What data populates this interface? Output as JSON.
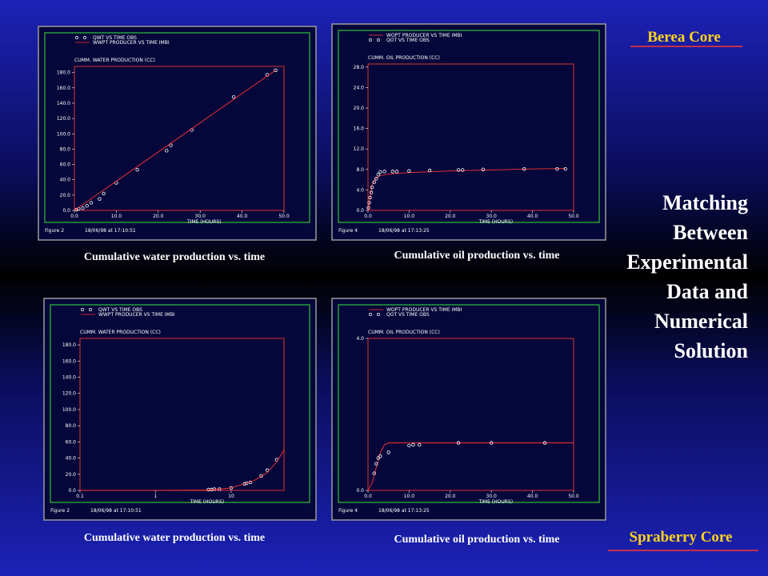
{
  "slide": {
    "top_label": "Berea Core",
    "bottom_label": "Spraberry Core",
    "title": [
      "Matching",
      "Between",
      "Experimental",
      "Data and",
      "Numerical",
      "Solution"
    ],
    "captions": [
      "Cumulative water production vs. time",
      "Cumulative oil production vs. time",
      "Cumulative water production vs. time",
      "Cumulative oil production vs. time"
    ]
  },
  "chart_data": [
    {
      "type": "line",
      "ylabel": "CUMM. WATER PRODUCTION (CC)",
      "xlabel": "TIME (HOURS)",
      "figure": "Figure 2",
      "timestamp": "18/06/98 at 17:10:51",
      "xlim": [
        0,
        50
      ],
      "xticks": [
        {
          "value": 0,
          "label": "0.0"
        },
        {
          "value": 10,
          "label": "10.0"
        },
        {
          "value": 20,
          "label": "20.0"
        },
        {
          "value": 30,
          "label": "30.0"
        },
        {
          "value": 40,
          "label": "40.0"
        },
        {
          "value": 50,
          "label": "50.0"
        }
      ],
      "ylim": [
        0,
        188
      ],
      "yticks": [
        {
          "value": 0,
          "label": "0.0"
        },
        {
          "value": 20,
          "label": "20.0"
        },
        {
          "value": 40,
          "label": "40.0"
        },
        {
          "value": 60,
          "label": "60.0"
        },
        {
          "value": 80,
          "label": "80.0"
        },
        {
          "value": 100,
          "label": "100.0"
        },
        {
          "value": 120,
          "label": "120.0"
        },
        {
          "value": 140,
          "label": "140.0"
        },
        {
          "value": 160,
          "label": "160.0"
        },
        {
          "value": 180,
          "label": "180.0"
        }
      ],
      "series": [
        {
          "name": "QWT VS TIME OBS",
          "color": "#ffffff",
          "style": "markers",
          "x": [
            0.5,
            1,
            2,
            3,
            4,
            6,
            7,
            10,
            15,
            22,
            23,
            28,
            38,
            46,
            48
          ],
          "values": [
            1,
            2,
            3,
            6,
            10,
            15,
            22,
            36,
            53,
            78,
            85,
            105,
            148,
            177,
            183
          ]
        },
        {
          "name": "WWPT PRODUCER VS TIME IMBI",
          "color": "#ff3333",
          "style": "line",
          "x": [
            0,
            48
          ],
          "values": [
            0,
            183
          ]
        }
      ]
    },
    {
      "type": "line",
      "ylabel": "CUMM. OIL PRODUCTION (CC)",
      "xlabel": "TIME (HOURS)",
      "figure": "Figure 4",
      "timestamp": "18/06/98 at 17:13:25",
      "xlim": [
        0,
        50
      ],
      "xticks": [
        {
          "value": 0,
          "label": "0.0"
        },
        {
          "value": 10,
          "label": "10.0"
        },
        {
          "value": 20,
          "label": "20.0"
        },
        {
          "value": 30,
          "label": "30.0"
        },
        {
          "value": 40,
          "label": "40.0"
        },
        {
          "value": 50,
          "label": "50.0"
        }
      ],
      "ylim": [
        0,
        28.6
      ],
      "yticks": [
        {
          "value": 0,
          "label": "0.0"
        },
        {
          "value": 4,
          "label": "4.0"
        },
        {
          "value": 8,
          "label": "8.0"
        },
        {
          "value": 12,
          "label": "12.0"
        },
        {
          "value": 16,
          "label": "16.0"
        },
        {
          "value": 20,
          "label": "20.0"
        },
        {
          "value": 24,
          "label": "24.0"
        },
        {
          "value": 28,
          "label": "28.0"
        }
      ],
      "series": [
        {
          "name": "WOPT PRODUCER VS TIME IMBI",
          "color": "#ff3333",
          "style": "line",
          "x": [
            0,
            1,
            2,
            3,
            5,
            10,
            20,
            30,
            40,
            48
          ],
          "values": [
            0,
            5,
            6.3,
            6.8,
            7.1,
            7.4,
            7.7,
            7.9,
            8.1,
            8.2
          ]
        },
        {
          "name": "QOT VS TIME OBS",
          "color": "#ffffff",
          "style": "markers",
          "x": [
            0.1,
            0.3,
            0.5,
            0.8,
            1,
            1.5,
            2,
            2.5,
            3,
            4,
            6,
            7,
            10,
            15,
            22,
            23,
            28,
            38,
            46,
            48
          ],
          "values": [
            0.5,
            1.5,
            2.5,
            3.5,
            4.5,
            5.5,
            6.2,
            7,
            7.5,
            7.6,
            7.6,
            7.6,
            7.7,
            7.8,
            7.9,
            7.9,
            8,
            8.1,
            8.1,
            8.1
          ]
        }
      ]
    },
    {
      "type": "line",
      "ylabel": "CUMM. WATER PRODUCTION (CC)",
      "xlabel": "TIME (HOURS)",
      "figure": "Figure 2",
      "timestamp": "18/06/98 at 17:10:51",
      "xlog": true,
      "xlim": [
        0.1,
        50
      ],
      "xticks": [
        0.1,
        1,
        10
      ],
      "ylim": [
        0,
        188
      ],
      "yticks": [
        {
          "value": 0,
          "label": "0.0"
        },
        {
          "value": 20,
          "label": "20.0"
        },
        {
          "value": 40,
          "label": "40.0"
        },
        {
          "value": 60,
          "label": "60.0"
        },
        {
          "value": 80,
          "label": "80.0"
        },
        {
          "value": 100,
          "label": "100.0"
        },
        {
          "value": 120,
          "label": "120.0"
        },
        {
          "value": 140,
          "label": "140.0"
        },
        {
          "value": 160,
          "label": "160.0"
        },
        {
          "value": 180,
          "label": "180.0"
        }
      ],
      "series": [
        {
          "name": "QWT VS TIME OBS",
          "color": "#ffffff",
          "style": "markers",
          "x": [
            5,
            5.5,
            6,
            7,
            10,
            15,
            16,
            18,
            25,
            30,
            40
          ],
          "values": [
            1,
            1,
            1.5,
            1.5,
            3,
            8,
            9,
            10,
            18,
            25,
            38
          ]
        },
        {
          "name": "WWPT PRODUCER VS TIME IMBI",
          "color": "#ff3333",
          "style": "line",
          "x": [
            0.1,
            1,
            5,
            10,
            20,
            30,
            40,
            50
          ],
          "values": [
            0,
            0,
            0.5,
            3,
            12,
            22,
            35,
            50
          ]
        }
      ]
    },
    {
      "type": "line",
      "ylabel": "CUMM. OIL PRODUCTION (CC)",
      "xlabel": "TIME (HOURS)",
      "figure": "Figure 4",
      "timestamp": "18/06/98 at 17:13:25",
      "xlim": [
        0,
        50
      ],
      "xticks": [
        {
          "value": 0,
          "label": "0.0"
        },
        {
          "value": 10,
          "label": "10.0"
        },
        {
          "value": 20,
          "label": "20.0"
        },
        {
          "value": 30,
          "label": "30.0"
        },
        {
          "value": 40,
          "label": "40.0"
        },
        {
          "value": 50,
          "label": "50.0"
        }
      ],
      "ylim": [
        0,
        4
      ],
      "yticks": [
        {
          "value": 0,
          "label": "0.0"
        },
        {
          "value": 4,
          "label": "4.0"
        }
      ],
      "series": [
        {
          "name": "WOPT PRODUCER VS TIME IMBI",
          "color": "#ff3333",
          "style": "line",
          "x": [
            0,
            1,
            2,
            3,
            4,
            5,
            50
          ],
          "values": [
            0,
            0.2,
            0.6,
            1.0,
            1.2,
            1.25,
            1.25
          ]
        },
        {
          "name": "QOT VS TIME OBS",
          "color": "#ffffff",
          "style": "markers",
          "x": [
            1.5,
            2,
            2.5,
            3,
            5,
            10,
            11,
            12.5,
            22,
            30,
            43
          ],
          "values": [
            0.45,
            0.7,
            0.85,
            0.9,
            1.0,
            1.18,
            1.2,
            1.2,
            1.25,
            1.25,
            1.25
          ]
        }
      ]
    }
  ]
}
